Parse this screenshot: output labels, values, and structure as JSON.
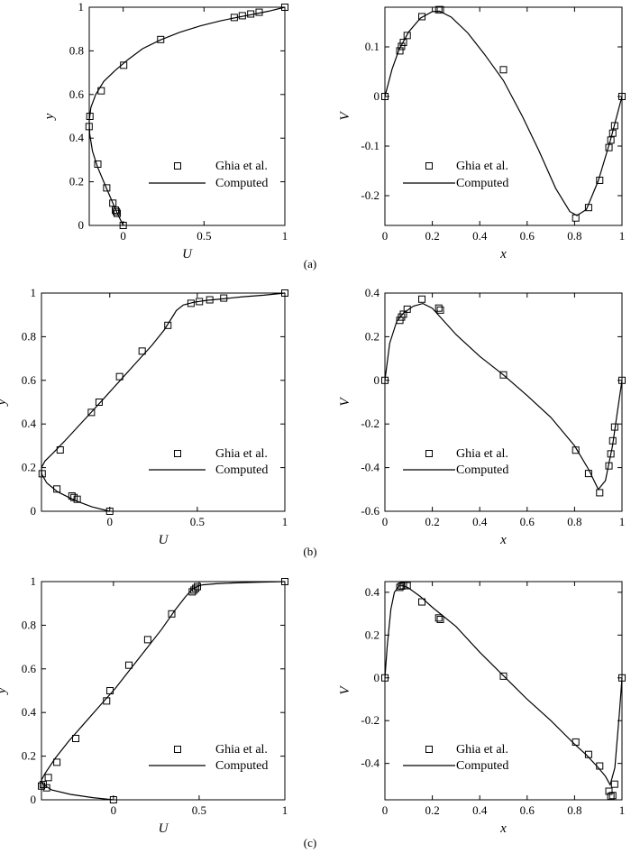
{
  "legend": {
    "symbols_label": "Ghia et al.",
    "line_label": "Computed"
  },
  "captions": [
    "(a)",
    "(b)",
    "(c)"
  ],
  "chart_data": [
    {
      "type": "line",
      "panel": "a-left",
      "xlabel": "U",
      "ylabel": "y",
      "xlim": [
        -0.21,
        1.0
      ],
      "ylim": [
        0,
        1
      ],
      "xticks": [
        0,
        0.5,
        1
      ],
      "xticklabels": [
        "0",
        "0.5",
        "1"
      ],
      "yticks": [
        0,
        0.2,
        0.4,
        0.6,
        0.8,
        1
      ],
      "yticklabels": [
        "0",
        "0.2",
        "0.4",
        "0.6",
        "0.8",
        "1"
      ],
      "legend_position": "lower-right",
      "series": [
        {
          "name": "Ghia et al.",
          "style": "markers",
          "x": [
            0,
            -0.037,
            -0.042,
            -0.048,
            -0.064,
            -0.102,
            -0.157,
            -0.211,
            -0.206,
            -0.136,
            0.003,
            0.232,
            0.687,
            0.737,
            0.789,
            0.841,
            1.0
          ],
          "y": [
            0,
            0.055,
            0.063,
            0.07,
            0.102,
            0.172,
            0.281,
            0.453,
            0.5,
            0.617,
            0.734,
            0.852,
            0.953,
            0.961,
            0.969,
            0.977,
            1.0
          ]
        },
        {
          "name": "Computed",
          "style": "line",
          "x": [
            0,
            -0.02,
            -0.045,
            -0.08,
            -0.12,
            -0.16,
            -0.19,
            -0.207,
            -0.21,
            -0.2,
            -0.17,
            -0.12,
            -0.05,
            0.03,
            0.12,
            0.23,
            0.35,
            0.48,
            0.6,
            0.7,
            0.8,
            0.9,
            1.0
          ],
          "y": [
            0,
            0.03,
            0.07,
            0.13,
            0.2,
            0.27,
            0.34,
            0.42,
            0.48,
            0.54,
            0.6,
            0.66,
            0.71,
            0.76,
            0.81,
            0.85,
            0.885,
            0.915,
            0.937,
            0.953,
            0.967,
            0.982,
            1.0
          ]
        }
      ]
    },
    {
      "type": "line",
      "panel": "a-right",
      "xlabel": "x",
      "ylabel": "V",
      "xlim": [
        0,
        1
      ],
      "ylim": [
        -0.26,
        0.18
      ],
      "xticks": [
        0,
        0.2,
        0.4,
        0.6,
        0.8,
        1
      ],
      "xticklabels": [
        "0",
        "0.2",
        "0.4",
        "0.6",
        "0.8",
        "1"
      ],
      "yticks": [
        -0.2,
        -0.1,
        0,
        0.1
      ],
      "yticklabels": [
        "-0.2",
        "-0.1",
        "0",
        "0.1"
      ],
      "legend_position": "lower-left",
      "series": [
        {
          "name": "Ghia et al.",
          "style": "markers",
          "x": [
            0,
            0.063,
            0.07,
            0.078,
            0.094,
            0.156,
            0.227,
            0.234,
            0.5,
            0.805,
            0.859,
            0.906,
            0.945,
            0.953,
            0.961,
            0.969,
            1.0
          ],
          "y": [
            0,
            0.092,
            0.101,
            0.109,
            0.123,
            0.161,
            0.175,
            0.175,
            0.054,
            -0.245,
            -0.224,
            -0.169,
            -0.103,
            -0.088,
            -0.074,
            -0.059,
            0
          ]
        },
        {
          "name": "Computed",
          "style": "line",
          "x": [
            0,
            0.03,
            0.06,
            0.1,
            0.15,
            0.2,
            0.23,
            0.28,
            0.35,
            0.42,
            0.5,
            0.58,
            0.65,
            0.72,
            0.78,
            0.81,
            0.85,
            0.9,
            0.95,
            1.0
          ],
          "y": [
            0,
            0.055,
            0.095,
            0.13,
            0.158,
            0.171,
            0.172,
            0.16,
            0.128,
            0.085,
            0.032,
            -0.04,
            -0.11,
            -0.185,
            -0.232,
            -0.24,
            -0.228,
            -0.17,
            -0.09,
            0
          ]
        }
      ]
    },
    {
      "type": "line",
      "panel": "b-left",
      "xlabel": "U",
      "ylabel": "y",
      "xlim": [
        -0.39,
        1.0
      ],
      "ylim": [
        0,
        1
      ],
      "xticks": [
        0,
        0.5,
        1
      ],
      "xticklabels": [
        "0",
        "0.5",
        "1"
      ],
      "yticks": [
        0,
        0.2,
        0.4,
        0.6,
        0.8,
        1
      ],
      "yticklabels": [
        "0",
        "0.2",
        "0.4",
        "0.6",
        "0.8",
        "1"
      ],
      "legend_position": "lower-right",
      "series": [
        {
          "name": "Ghia et al.",
          "style": "markers",
          "x": [
            0,
            -0.186,
            -0.204,
            -0.216,
            -0.302,
            -0.283,
            -0.386,
            -0.105,
            -0.061,
            0.056,
            0.185,
            0.332,
            0.464,
            0.512,
            0.571,
            0.651,
            1.0
          ],
          "y": [
            0,
            0.055,
            0.063,
            0.07,
            0.102,
            0.281,
            0.172,
            0.453,
            0.5,
            0.617,
            0.734,
            0.852,
            0.953,
            0.961,
            0.969,
            0.977,
            1.0
          ]
        },
        {
          "name": "Computed",
          "style": "line",
          "x": [
            0,
            -0.1,
            -0.2,
            -0.3,
            -0.36,
            -0.388,
            -0.39,
            -0.37,
            -0.32,
            -0.26,
            -0.19,
            -0.11,
            -0.03,
            0.06,
            0.15,
            0.24,
            0.31,
            0.35,
            0.38,
            0.42,
            0.48,
            0.56,
            0.66,
            0.76,
            0.88,
            1.0
          ],
          "y": [
            0,
            0.02,
            0.05,
            0.09,
            0.13,
            0.17,
            0.2,
            0.23,
            0.27,
            0.32,
            0.38,
            0.45,
            0.52,
            0.6,
            0.68,
            0.76,
            0.83,
            0.88,
            0.92,
            0.945,
            0.958,
            0.967,
            0.975,
            0.983,
            0.99,
            1.0
          ]
        }
      ]
    },
    {
      "type": "line",
      "panel": "b-right",
      "xlabel": "x",
      "ylabel": "V",
      "xlim": [
        0,
        1
      ],
      "ylim": [
        -0.6,
        0.4
      ],
      "xticks": [
        0,
        0.2,
        0.4,
        0.6,
        0.8,
        1
      ],
      "xticklabels": [
        "0",
        "0.2",
        "0.4",
        "0.6",
        "0.8",
        "1"
      ],
      "yticks": [
        -0.6,
        -0.4,
        -0.2,
        0,
        0.2,
        0.4
      ],
      "yticklabels": [
        "-0.6",
        "-0.4",
        "-0.2",
        "0",
        "0.2",
        "0.4"
      ],
      "legend_position": "lower-right",
      "series": [
        {
          "name": "Ghia et al.",
          "style": "markers",
          "x": [
            0,
            0.063,
            0.07,
            0.078,
            0.094,
            0.156,
            0.227,
            0.234,
            0.5,
            0.805,
            0.859,
            0.906,
            0.945,
            0.953,
            0.961,
            0.969,
            1.0
          ],
          "y": [
            0,
            0.275,
            0.29,
            0.303,
            0.326,
            0.372,
            0.331,
            0.322,
            0.025,
            -0.32,
            -0.427,
            -0.515,
            -0.392,
            -0.337,
            -0.277,
            -0.214,
            0
          ]
        },
        {
          "name": "Computed",
          "style": "line",
          "x": [
            0,
            0.02,
            0.05,
            0.08,
            0.12,
            0.16,
            0.2,
            0.25,
            0.3,
            0.4,
            0.5,
            0.6,
            0.7,
            0.8,
            0.86,
            0.9,
            0.93,
            0.96,
            0.98,
            1.0
          ],
          "y": [
            0,
            0.17,
            0.27,
            0.31,
            0.34,
            0.352,
            0.33,
            0.27,
            0.21,
            0.11,
            0.025,
            -0.07,
            -0.17,
            -0.3,
            -0.41,
            -0.5,
            -0.46,
            -0.3,
            -0.15,
            0
          ]
        }
      ]
    },
    {
      "type": "line",
      "panel": "c-left",
      "xlabel": "U",
      "ylabel": "y",
      "xlim": [
        -0.42,
        1.0
      ],
      "ylim": [
        0,
        1
      ],
      "xticks": [
        0,
        0.5,
        1
      ],
      "xticklabels": [
        "0",
        "0.5",
        "1"
      ],
      "yticks": [
        0,
        0.2,
        0.4,
        0.6,
        0.8,
        1
      ],
      "yticklabels": [
        "0",
        "0.2",
        "0.4",
        "0.6",
        "0.8",
        "1"
      ],
      "legend_position": "lower-right",
      "series": [
        {
          "name": "Ghia et al.",
          "style": "markers",
          "x": [
            0,
            -0.39,
            -0.42,
            -0.41,
            -0.38,
            -0.33,
            -0.22,
            -0.04,
            -0.02,
            0.09,
            0.2,
            0.34,
            0.46,
            0.47,
            0.48,
            0.49,
            1.0
          ],
          "y": [
            0,
            0.055,
            0.063,
            0.07,
            0.102,
            0.172,
            0.281,
            0.453,
            0.5,
            0.617,
            0.734,
            0.852,
            0.953,
            0.961,
            0.969,
            0.977,
            1.0
          ]
        },
        {
          "name": "Computed",
          "style": "line",
          "x": [
            0,
            -0.12,
            -0.25,
            -0.36,
            -0.41,
            -0.42,
            -0.4,
            -0.34,
            -0.26,
            -0.17,
            -0.08,
            0.01,
            0.1,
            0.19,
            0.28,
            0.36,
            0.42,
            0.46,
            0.49,
            0.52,
            0.6,
            0.7,
            0.85,
            1.0
          ],
          "y": [
            0,
            0.01,
            0.025,
            0.045,
            0.07,
            0.09,
            0.12,
            0.19,
            0.27,
            0.35,
            0.43,
            0.51,
            0.6,
            0.69,
            0.78,
            0.87,
            0.93,
            0.965,
            0.978,
            0.985,
            0.99,
            0.994,
            0.997,
            1.0
          ]
        }
      ]
    },
    {
      "type": "line",
      "panel": "c-right",
      "xlabel": "x",
      "ylabel": "V",
      "xlim": [
        0,
        1
      ],
      "ylim": [
        -0.57,
        0.45
      ],
      "xticks": [
        0,
        0.2,
        0.4,
        0.6,
        0.8,
        1
      ],
      "xticklabels": [
        "0",
        "0.2",
        "0.4",
        "0.6",
        "0.8",
        "1"
      ],
      "yticks": [
        -0.4,
        -0.2,
        0,
        0.2,
        0.4
      ],
      "yticklabels": [
        "-0.4",
        "-0.2",
        "0",
        "0.2",
        "0.4"
      ],
      "legend_position": "lower-right",
      "series": [
        {
          "name": "Ghia et al.",
          "style": "markers",
          "x": [
            0,
            0.063,
            0.07,
            0.078,
            0.094,
            0.156,
            0.227,
            0.234,
            0.5,
            0.805,
            0.859,
            0.906,
            0.945,
            0.953,
            0.961,
            0.969,
            1.0
          ],
          "y": [
            0,
            0.423,
            0.429,
            0.431,
            0.431,
            0.355,
            0.28,
            0.273,
            0.008,
            -0.3,
            -0.358,
            -0.412,
            -0.53,
            -0.553,
            -0.55,
            -0.497,
            0
          ]
        },
        {
          "name": "Computed",
          "style": "line",
          "x": [
            0,
            0.01,
            0.025,
            0.04,
            0.06,
            0.08,
            0.1,
            0.15,
            0.2,
            0.3,
            0.4,
            0.5,
            0.6,
            0.7,
            0.8,
            0.85,
            0.9,
            0.93,
            0.95,
            0.97,
            0.99,
            1.0
          ],
          "y": [
            0,
            0.15,
            0.32,
            0.4,
            0.43,
            0.43,
            0.42,
            0.38,
            0.33,
            0.24,
            0.12,
            0.01,
            -0.1,
            -0.2,
            -0.31,
            -0.36,
            -0.42,
            -0.46,
            -0.5,
            -0.42,
            -0.15,
            0
          ]
        }
      ]
    }
  ]
}
